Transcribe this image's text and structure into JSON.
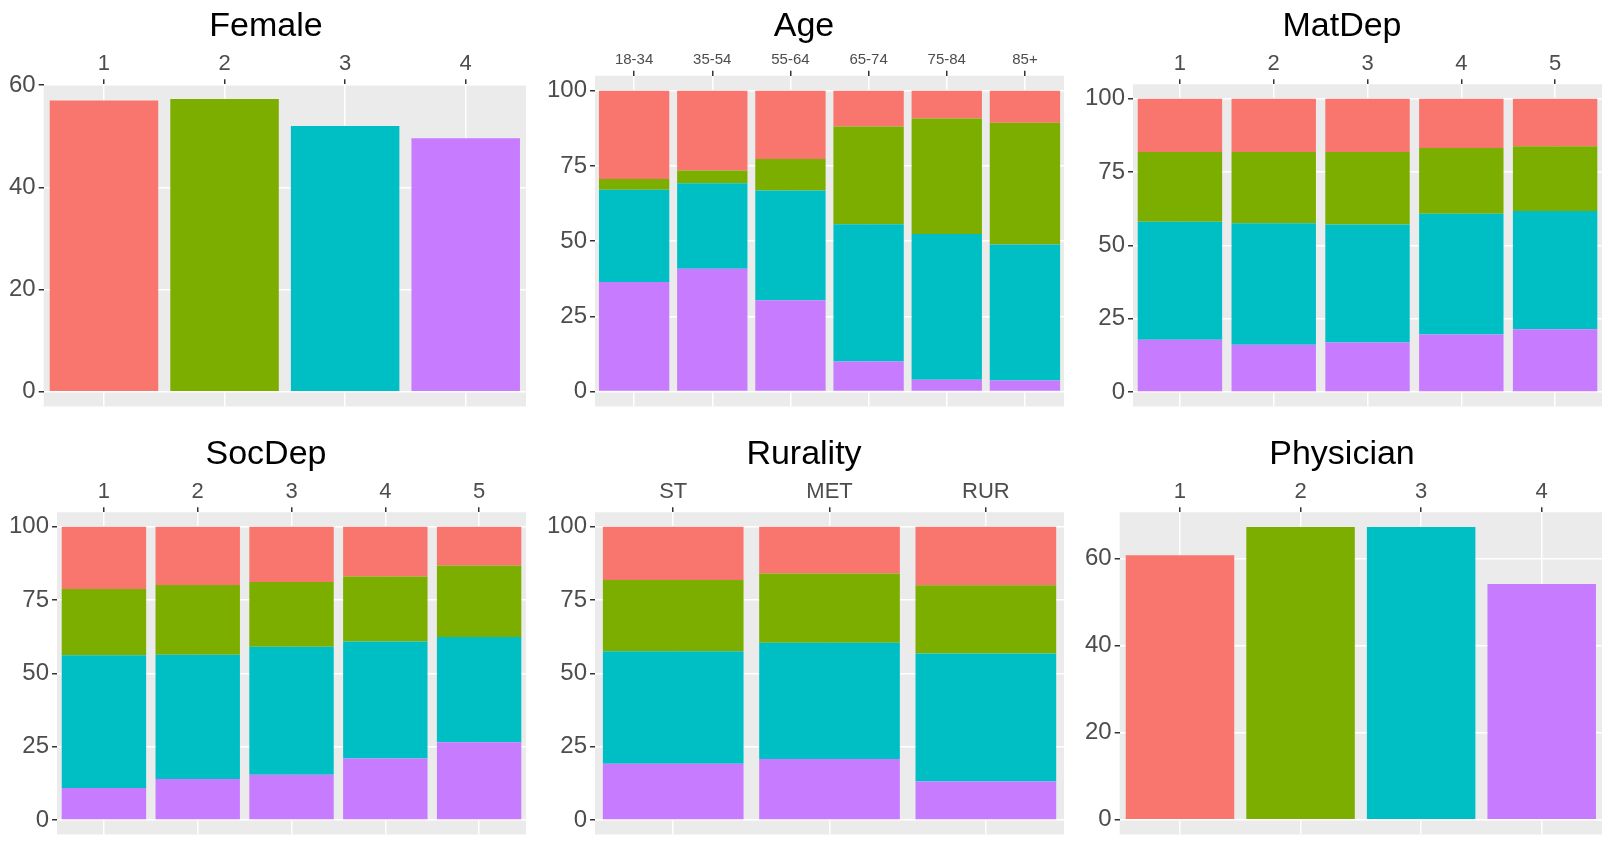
{
  "chart_data": [
    {
      "type": "bar",
      "title": "Female",
      "categories": [
        "1",
        "2",
        "3",
        "4"
      ],
      "values": [
        57,
        57.3,
        52,
        49.6
      ],
      "colors": [
        "#f8766d",
        "#7cae00",
        "#00bfc4",
        "#c77cff"
      ],
      "ylim": [
        -2.9,
        60.2
      ],
      "yticks": [
        0,
        20,
        40,
        60
      ],
      "grid": true
    },
    {
      "type": "bar",
      "title": "Age",
      "categories": [
        "18-34",
        "35-54",
        "55-64",
        "65-74",
        "75-84",
        "85+"
      ],
      "stacked": true,
      "series": [
        {
          "color": "#c77cff",
          "values": [
            36.4,
            40.8,
            30.4,
            10.0,
            3.9,
            3.7
          ]
        },
        {
          "color": "#00bfc4",
          "values": [
            30.7,
            28.5,
            36.5,
            45.6,
            48.5,
            45.2
          ]
        },
        {
          "color": "#7cae00",
          "values": [
            3.6,
            4.2,
            10.4,
            32.5,
            38.4,
            40.5
          ]
        },
        {
          "color": "#f8766d",
          "values": [
            29.3,
            26.5,
            22.7,
            11.9,
            9.2,
            10.6
          ]
        }
      ],
      "ylim": [
        -5,
        105
      ],
      "yticks": [
        0,
        25,
        50,
        75,
        100
      ],
      "grid": true
    },
    {
      "type": "bar",
      "title": "MatDep",
      "categories": [
        "1",
        "2",
        "3",
        "4",
        "5"
      ],
      "stacked": true,
      "series": [
        {
          "color": "#c77cff",
          "values": [
            17.8,
            16.1,
            16.9,
            19.6,
            21.4
          ]
        },
        {
          "color": "#00bfc4",
          "values": [
            40.3,
            41.5,
            40.2,
            41.2,
            40.3
          ]
        },
        {
          "color": "#7cae00",
          "values": [
            23.8,
            24.3,
            24.8,
            22.4,
            22.1
          ]
        },
        {
          "color": "#f8766d",
          "values": [
            18.1,
            18.1,
            18.1,
            16.8,
            16.2
          ]
        }
      ],
      "ylim": [
        -5,
        105
      ],
      "yticks": [
        0,
        25,
        50,
        75,
        100
      ],
      "grid": true
    },
    {
      "type": "bar",
      "title": "SocDep",
      "categories": [
        "1",
        "2",
        "3",
        "4",
        "5"
      ],
      "stacked": true,
      "series": [
        {
          "color": "#c77cff",
          "values": [
            10.9,
            14.0,
            15.4,
            21.0,
            26.5
          ]
        },
        {
          "color": "#00bfc4",
          "values": [
            45.3,
            42.4,
            43.7,
            39.9,
            35.9
          ]
        },
        {
          "color": "#7cae00",
          "values": [
            22.6,
            23.8,
            22.1,
            22.2,
            24.4
          ]
        },
        {
          "color": "#f8766d",
          "values": [
            21.2,
            19.8,
            18.8,
            16.9,
            13.2
          ]
        }
      ],
      "ylim": [
        -5,
        105
      ],
      "yticks": [
        0,
        25,
        50,
        75,
        100
      ],
      "grid": true
    },
    {
      "type": "bar",
      "title": "Rurality",
      "categories": [
        "ST",
        "MET",
        "RUR"
      ],
      "stacked": true,
      "series": [
        {
          "color": "#c77cff",
          "values": [
            19.2,
            20.8,
            13.1
          ]
        },
        {
          "color": "#00bfc4",
          "values": [
            38.4,
            39.7,
            43.7
          ]
        },
        {
          "color": "#7cae00",
          "values": [
            24.3,
            23.6,
            23.3
          ]
        },
        {
          "color": "#f8766d",
          "values": [
            18.1,
            15.9,
            19.9
          ]
        }
      ],
      "ylim": [
        -5,
        105
      ],
      "yticks": [
        0,
        25,
        50,
        75,
        100
      ],
      "grid": true
    },
    {
      "type": "bar",
      "title": "Physician",
      "categories": [
        "1",
        "2",
        "3",
        "4"
      ],
      "values": [
        60.7,
        67.2,
        67.2,
        54.1
      ],
      "colors": [
        "#f8766d",
        "#7cae00",
        "#00bfc4",
        "#c77cff"
      ],
      "ylim": [
        -3.4,
        70.6
      ],
      "yticks": [
        0,
        20,
        40,
        60
      ],
      "grid": true
    }
  ]
}
